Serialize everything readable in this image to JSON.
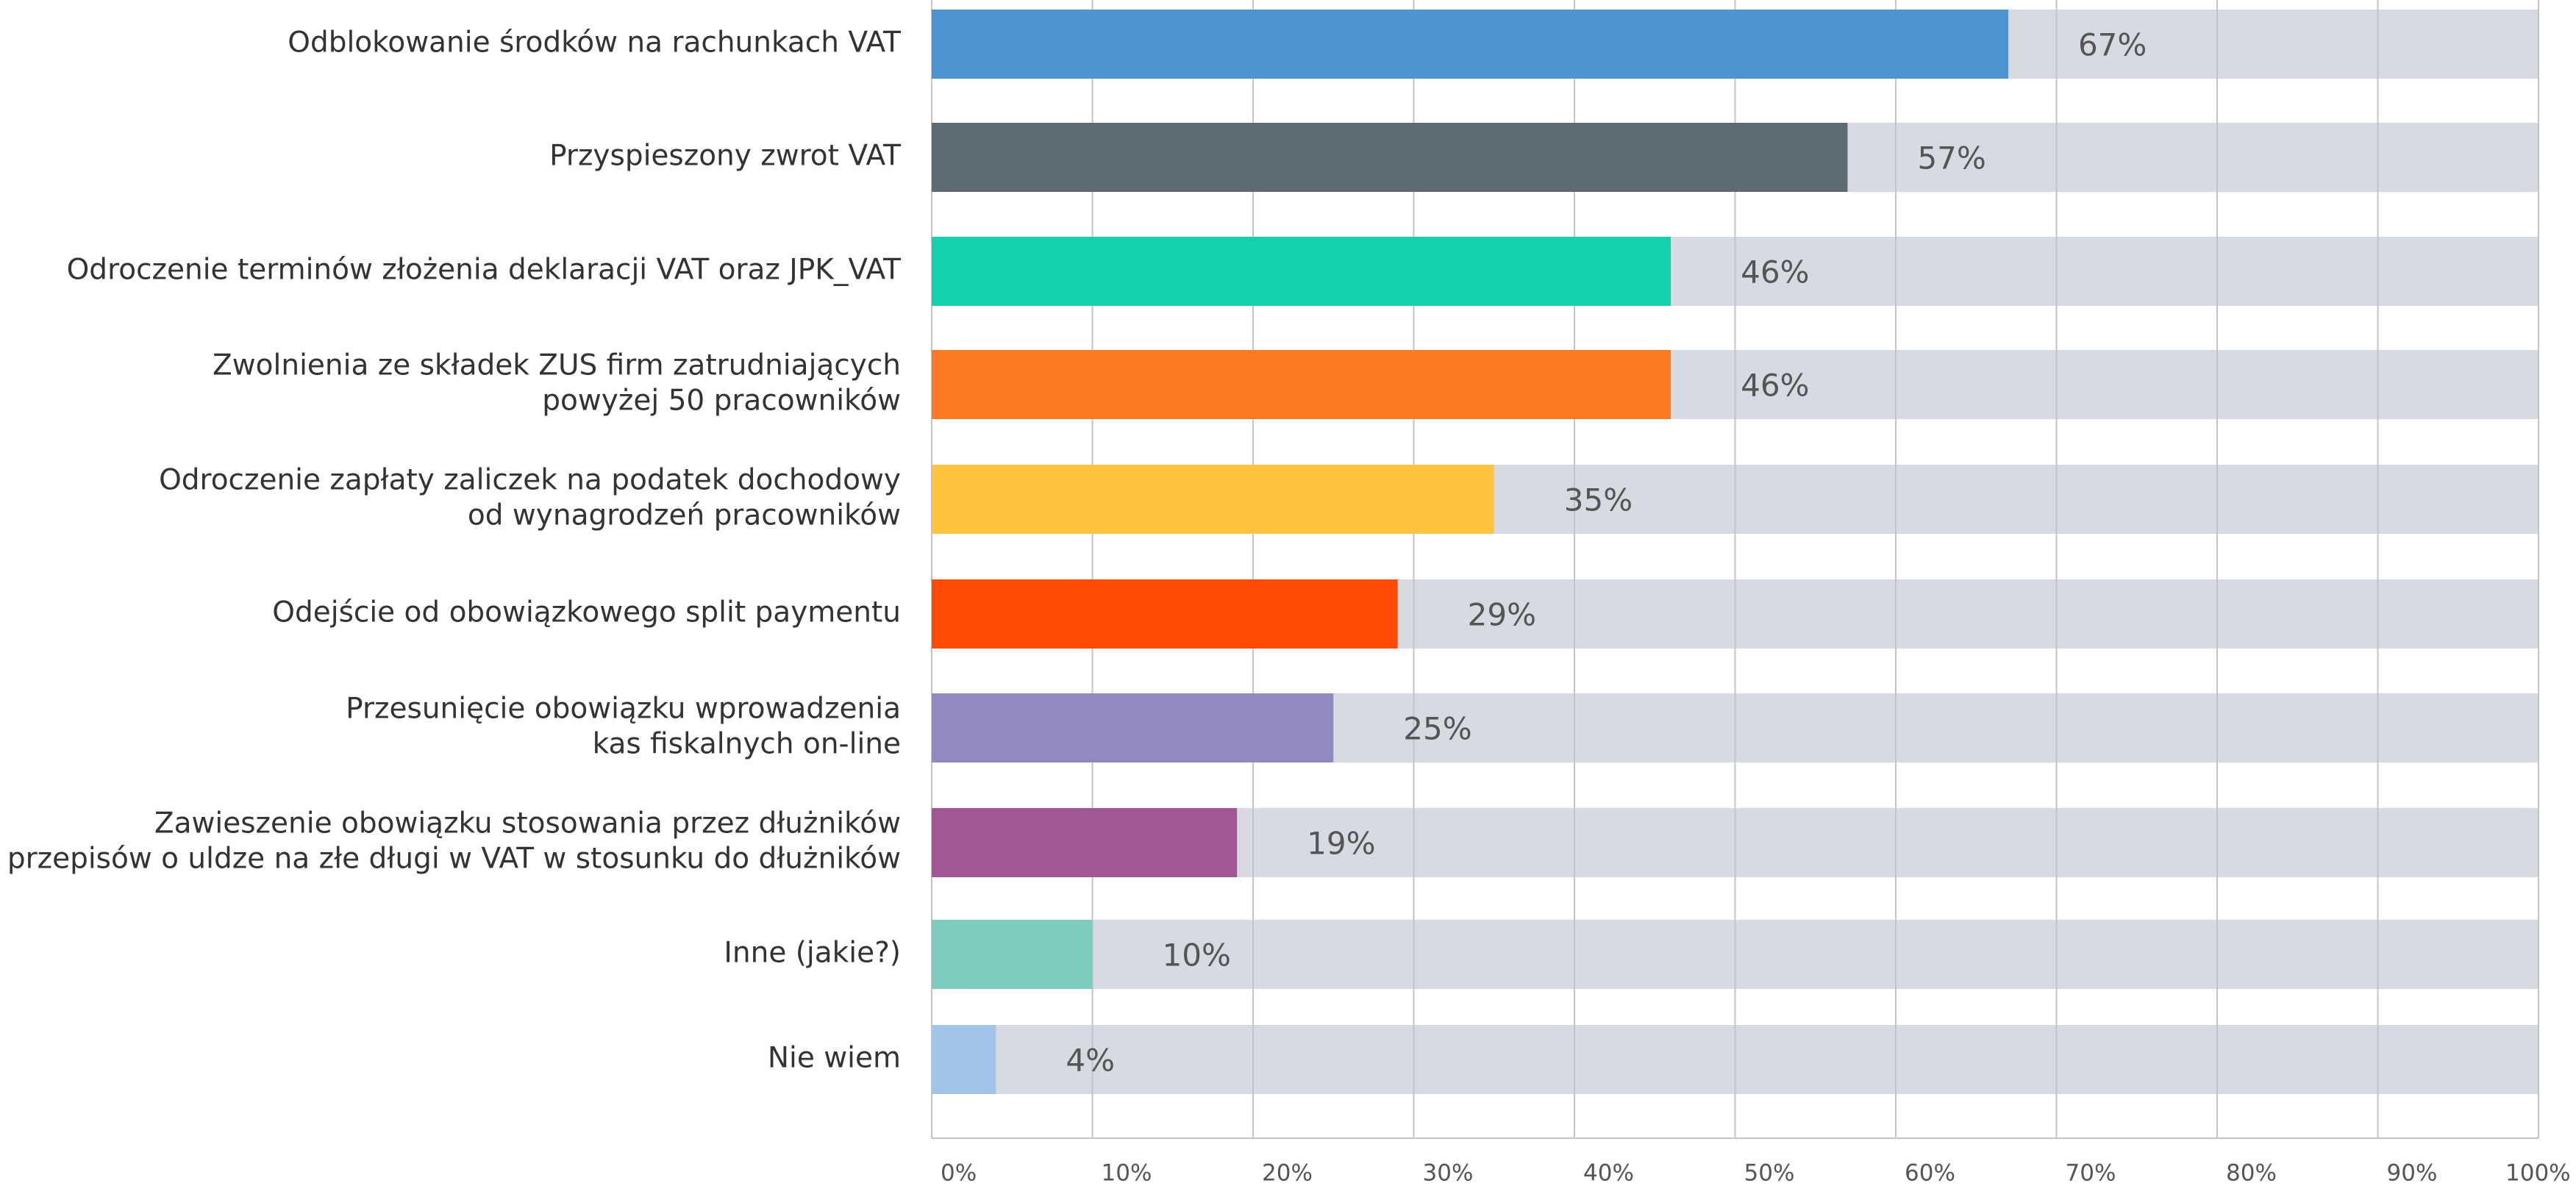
{
  "chart_data": {
    "type": "hbar",
    "categories": [
      [
        "Odblokowanie środków na rachunkach VAT"
      ],
      [
        "Przyspieszony zwrot VAT"
      ],
      [
        "Odroczenie terminów złożenia deklaracji VAT oraz JPK_VAT"
      ],
      [
        "Zwolnienia ze składek ZUS firm zatrudniających",
        "powyżej 50 pracowników"
      ],
      [
        "Odroczenie zapłaty zaliczek na podatek dochodowy",
        "od wynagrodzeń pracowników"
      ],
      [
        "Odejście od obowiązkowego split paymentu"
      ],
      [
        "Przesunięcie obowiązku wprowadzenia",
        "kas fiskalnych on-line"
      ],
      [
        "Zawieszenie obowiązku stosowania przez dłużników",
        "przepisów o uldze na złe długi w VAT w stosunku do dłużników"
      ],
      [
        "Inne (jakie?)"
      ],
      [
        "Nie wiem"
      ]
    ],
    "values": [
      67,
      57,
      46,
      46,
      35,
      29,
      25,
      19,
      10,
      4
    ],
    "value_labels": [
      "67%",
      "57%",
      "46%",
      "46%",
      "35%",
      "29%",
      "25%",
      "19%",
      "10%",
      "4%"
    ],
    "colors": [
      "#4d94d0",
      "#5f6b72",
      "#14d0ad",
      "#fd7a25",
      "#fec33f",
      "#fe4a03",
      "#928abe",
      "#a15794",
      "#7dccbc",
      "#a2c4e9"
    ],
    "track_color": "#d8dae2",
    "xlim": [
      0,
      100
    ],
    "xticks": [
      {
        "value": 0,
        "label": "0%"
      },
      {
        "value": 10,
        "label": "10%"
      },
      {
        "value": 20,
        "label": "20%"
      },
      {
        "value": 30,
        "label": "30%"
      },
      {
        "value": 40,
        "label": "40%"
      },
      {
        "value": 50,
        "label": "50%"
      },
      {
        "value": 60,
        "label": "60%"
      },
      {
        "value": 70,
        "label": "70%"
      },
      {
        "value": 80,
        "label": "80%"
      },
      {
        "value": 90,
        "label": "90%"
      },
      {
        "value": 100,
        "label": "100%"
      }
    ],
    "grid": true
  }
}
